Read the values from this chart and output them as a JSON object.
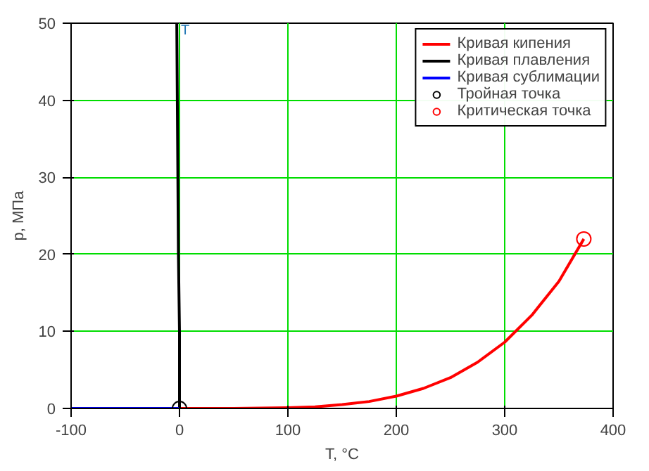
{
  "chart_data": {
    "type": "line",
    "xlabel": "T, °C",
    "ylabel": "p, МПа",
    "xlim": [
      -100,
      400
    ],
    "ylim": [
      0,
      50
    ],
    "xticks": [
      -100,
      0,
      100,
      200,
      300,
      400
    ],
    "yticks": [
      0,
      10,
      20,
      30,
      40,
      50
    ],
    "grid": true,
    "legend": "top right",
    "annotations": [
      {
        "text": "T",
        "x": 0,
        "y": 50
      }
    ],
    "series": [
      {
        "name": "Кривая кипения",
        "color": "#ff0000",
        "x": [
          0,
          50,
          100,
          125,
          150,
          175,
          200,
          225,
          250,
          275,
          300,
          325,
          350,
          373
        ],
        "values": [
          0,
          0,
          0.1,
          0.2,
          0.5,
          0.9,
          1.6,
          2.6,
          4,
          6,
          8.6,
          12.1,
          16.5,
          22
        ]
      },
      {
        "name": "Кривая плавления",
        "color": "#000000",
        "x": [
          0,
          0,
          -1,
          -1.5,
          -2,
          -2.5
        ],
        "values": [
          0,
          10,
          20,
          30,
          40,
          50
        ]
      },
      {
        "name": "Кривая сублимации",
        "color": "#0000ff",
        "x": [
          -100,
          -50,
          0
        ],
        "values": [
          0,
          0,
          0
        ]
      },
      {
        "name": "Тройная точка",
        "color": "#000000",
        "type": "scatter",
        "marker": "circle",
        "x": [
          0
        ],
        "values": [
          0
        ]
      },
      {
        "name": "Критическая точка",
        "color": "#ff0000",
        "type": "scatter",
        "marker": "circle",
        "x": [
          373
        ],
        "values": [
          22
        ]
      }
    ]
  }
}
